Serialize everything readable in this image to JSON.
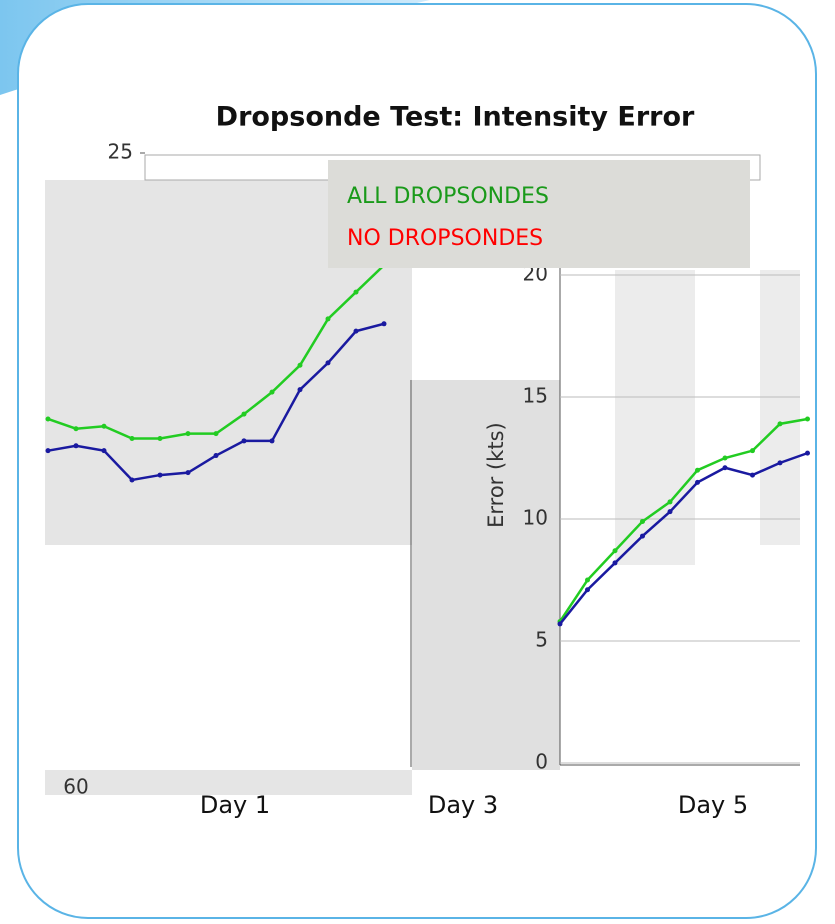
{
  "title": "Dropsonde Test: Intensity Error",
  "day_labels": [
    "Day 1",
    "Day 3",
    "Day 5"
  ],
  "chart_data": [
    {
      "type": "line",
      "categories": [
        null,
        "60",
        null,
        null,
        null,
        null,
        null,
        null,
        null,
        null,
        null,
        null,
        null
      ],
      "ylim": [
        0,
        25
      ],
      "yticks": [
        25
      ],
      "series": [
        {
          "name": "ALL DROPSONDES",
          "color": "#22cc22",
          "label_color": "#1a9a1a",
          "values": [
            14.1,
            13.7,
            13.8,
            13.3,
            13.3,
            13.5,
            13.5,
            14.3,
            15.2,
            16.3,
            18.2,
            19.3,
            20.4
          ]
        },
        {
          "name": "NO DROPSONDES",
          "color": "#1a1aa0",
          "label_color": "#ff0000",
          "values": [
            12.8,
            13.0,
            12.8,
            11.6,
            11.8,
            11.9,
            12.6,
            13.2,
            13.2,
            15.3,
            16.4,
            17.7,
            18.0
          ]
        }
      ]
    },
    {
      "type": "line",
      "ylabel": "Error (kts)",
      "categories": [
        null,
        null,
        null,
        null,
        null,
        null,
        null,
        null,
        null,
        null
      ],
      "ylim": [
        0,
        25
      ],
      "yticks": [
        0,
        5,
        10,
        15,
        20
      ],
      "grid": true,
      "series": [
        {
          "color": "#22cc22",
          "values": [
            5.8,
            7.5,
            8.7,
            9.9,
            10.7,
            12.0,
            12.5,
            12.8,
            13.9,
            14.1
          ]
        },
        {
          "color": "#1a1aa0",
          "values": [
            5.7,
            7.1,
            8.2,
            9.3,
            10.3,
            11.5,
            12.1,
            11.8,
            12.3,
            12.7
          ]
        }
      ]
    }
  ]
}
